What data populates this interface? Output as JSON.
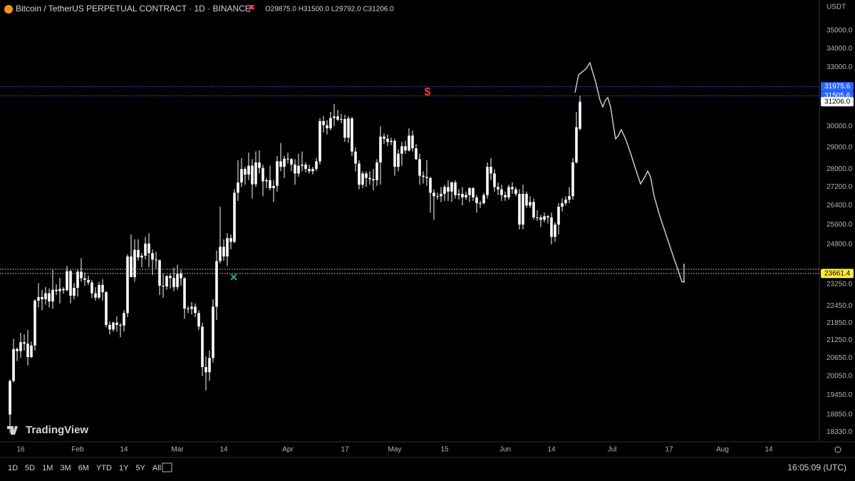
{
  "header": {
    "symbol": "Bitcoin / TetherUS PERPETUAL CONTRACT · 1D · BINANCE",
    "ohlc": "O29875.0 H31500.0 L29792.0 C31206.0"
  },
  "chart_data": {
    "type": "candlestick",
    "color": "#ffffff",
    "log_scale": true,
    "currency": "USDT",
    "xlim": [
      10.2,
      240.2
    ],
    "xticks": [
      {
        "value": 16,
        "label": "16"
      },
      {
        "value": 32,
        "label": "Feb"
      },
      {
        "value": 45,
        "label": "14"
      },
      {
        "value": 60,
        "label": "Mar"
      },
      {
        "value": 73,
        "label": "14"
      },
      {
        "value": 91,
        "label": "Apr"
      },
      {
        "value": 107,
        "label": "17"
      },
      {
        "value": 121,
        "label": "May"
      },
      {
        "value": 135,
        "label": "15"
      },
      {
        "value": 152,
        "label": "Jun"
      },
      {
        "value": 165,
        "label": "14"
      },
      {
        "value": 182,
        "label": "Jul"
      },
      {
        "value": 198,
        "label": "17"
      },
      {
        "value": 213,
        "label": "Aug"
      },
      {
        "value": 226,
        "label": "14"
      }
    ],
    "ylim": [
      18040,
      35850
    ],
    "yticks": [
      {
        "value": 35000,
        "label": "35000.0"
      },
      {
        "value": 34000,
        "label": "34000.0"
      },
      {
        "value": 33000,
        "label": "33000.0"
      },
      {
        "value": 30000,
        "label": "30000.0"
      },
      {
        "value": 29000,
        "label": "29000.0"
      },
      {
        "value": 28000,
        "label": "28000.0"
      },
      {
        "value": 27200,
        "label": "27200.0"
      },
      {
        "value": 26400,
        "label": "26400.0"
      },
      {
        "value": 25600,
        "label": "25600.0"
      },
      {
        "value": 24800,
        "label": "24800.0"
      },
      {
        "value": 23250,
        "label": "23250.0"
      },
      {
        "value": 22450,
        "label": "22450.0"
      },
      {
        "value": 21850,
        "label": "21850.0"
      },
      {
        "value": 21250,
        "label": "21250.0"
      },
      {
        "value": 20650,
        "label": "20650.0"
      },
      {
        "value": 20050,
        "label": "20050.0"
      },
      {
        "value": 19450,
        "label": "19450.0"
      },
      {
        "value": 18850,
        "label": "18850.0"
      },
      {
        "value": 18330,
        "label": "18330.0"
      }
    ],
    "price_tags": [
      {
        "value": 31975.6,
        "label": "31975.6",
        "color": "#2962ff"
      },
      {
        "value": 31505.6,
        "label": "31505.6",
        "color": "#2962ff"
      },
      {
        "value": 31206.0,
        "label": "31206.0",
        "color": "#ffffff"
      },
      {
        "value": 23822,
        "color": "#ffeb3b"
      },
      {
        "value": 23661.4,
        "label": "23661.4",
        "color": "#ffeb3b"
      }
    ],
    "markers": [
      {
        "text": "$",
        "color": "#f23645"
      },
      {
        "text": "×",
        "color": "#22ab94"
      }
    ],
    "x": [
      13,
      14,
      15,
      16,
      17,
      18,
      19,
      20,
      21,
      22,
      23,
      24,
      25,
      26,
      27,
      28,
      29,
      30,
      31,
      32,
      33,
      34,
      35,
      36,
      37,
      38,
      39,
      40,
      41,
      42,
      43,
      44,
      45,
      46,
      47,
      48,
      49,
      50,
      51,
      52,
      53,
      54,
      55,
      56,
      57,
      58,
      59,
      60,
      61,
      62,
      63,
      64,
      65,
      66,
      67,
      68,
      69,
      70,
      71,
      72,
      73,
      74,
      75,
      76,
      77,
      78,
      79,
      80,
      81,
      82,
      83,
      84,
      85,
      86,
      87,
      88,
      89,
      90,
      91,
      92,
      93,
      94,
      95,
      96,
      97,
      98,
      99,
      100,
      101,
      102,
      103,
      104,
      105,
      106,
      107,
      108,
      109,
      110,
      111,
      112,
      113,
      114,
      115,
      116,
      117,
      118,
      119,
      120,
      121,
      122,
      123,
      124,
      125,
      126,
      127,
      128,
      129,
      130,
      131,
      132,
      133,
      134,
      135,
      136,
      137,
      138,
      139,
      140,
      141,
      142,
      143,
      144,
      145,
      146,
      147,
      148,
      149,
      150,
      151,
      152,
      153,
      154,
      155,
      156,
      157,
      158,
      159,
      160,
      161,
      162,
      163,
      164,
      165,
      166,
      167,
      168,
      169,
      170,
      171,
      172,
      173
    ],
    "ohlc": [
      [
        18850,
        19950,
        18300,
        19900
      ],
      [
        19900,
        21300,
        19850,
        20950
      ],
      [
        20950,
        21000,
        20550,
        20880
      ],
      [
        20880,
        21500,
        20650,
        21180
      ],
      [
        21180,
        21450,
        20900,
        21130
      ],
      [
        21130,
        21600,
        20400,
        20680
      ],
      [
        20680,
        21200,
        20650,
        21070
      ],
      [
        21070,
        22700,
        20900,
        22650
      ],
      [
        22650,
        23300,
        22400,
        22780
      ],
      [
        22780,
        23050,
        22300,
        22700
      ],
      [
        22700,
        23150,
        22500,
        22920
      ],
      [
        22920,
        23100,
        22400,
        22620
      ],
      [
        22620,
        23800,
        22350,
        23050
      ],
      [
        23050,
        23250,
        22850,
        23000
      ],
      [
        23000,
        23500,
        22550,
        23080
      ],
      [
        23080,
        23150,
        22900,
        23030
      ],
      [
        23030,
        23950,
        23000,
        23750
      ],
      [
        23750,
        23800,
        22550,
        22830
      ],
      [
        22830,
        23300,
        22700,
        23120
      ],
      [
        23120,
        23800,
        22800,
        23730
      ],
      [
        23730,
        24250,
        23350,
        23480
      ],
      [
        23480,
        23700,
        23200,
        23420
      ],
      [
        23420,
        23580,
        23230,
        23320
      ],
      [
        23320,
        23420,
        22750,
        22920
      ],
      [
        22920,
        23150,
        22650,
        22760
      ],
      [
        22760,
        23350,
        22700,
        23230
      ],
      [
        23230,
        23450,
        22650,
        22960
      ],
      [
        22960,
        23000,
        21700,
        21780
      ],
      [
        21780,
        21900,
        21450,
        21620
      ],
      [
        21620,
        21900,
        21550,
        21860
      ],
      [
        21860,
        22080,
        21550,
        21780
      ],
      [
        21780,
        21850,
        21350,
        21760
      ],
      [
        21760,
        22300,
        21550,
        22200
      ],
      [
        22200,
        24400,
        22050,
        24320
      ],
      [
        24320,
        25200,
        23600,
        23520
      ],
      [
        23520,
        25000,
        23350,
        24580
      ],
      [
        24580,
        25000,
        24150,
        24280
      ],
      [
        24280,
        24450,
        23900,
        24350
      ],
      [
        24350,
        25100,
        24200,
        24830
      ],
      [
        24830,
        25250,
        23900,
        24450
      ],
      [
        24450,
        24600,
        23600,
        24200
      ],
      [
        24200,
        24500,
        23850,
        24170
      ],
      [
        24170,
        24200,
        22850,
        23200
      ],
      [
        23200,
        23650,
        22750,
        23170
      ],
      [
        23170,
        23600,
        23050,
        23560
      ],
      [
        23560,
        23650,
        23100,
        23490
      ],
      [
        23490,
        23880,
        23000,
        23150
      ],
      [
        23150,
        24000,
        23050,
        23650
      ],
      [
        23650,
        23800,
        23200,
        23480
      ],
      [
        23480,
        23520,
        22000,
        22360
      ],
      [
        22360,
        22450,
        22200,
        22350
      ],
      [
        22350,
        22600,
        22150,
        22430
      ],
      [
        22430,
        22550,
        22050,
        22200
      ],
      [
        22200,
        22300,
        21600,
        21720
      ],
      [
        21720,
        21850,
        20050,
        20350
      ],
      [
        20350,
        20700,
        19600,
        20180
      ],
      [
        20180,
        20900,
        19900,
        20650
      ],
      [
        20650,
        22700,
        20500,
        22430
      ],
      [
        22430,
        24550,
        21950,
        24140
      ],
      [
        24140,
        26350,
        24050,
        24700
      ],
      [
        24700,
        25000,
        24150,
        24320
      ],
      [
        24320,
        25250,
        23950,
        25050
      ],
      [
        25050,
        25200,
        24600,
        24900
      ],
      [
        24900,
        27100,
        24850,
        26950
      ],
      [
        26950,
        28400,
        26600,
        27400
      ],
      [
        27400,
        28500,
        27200,
        28000
      ],
      [
        28000,
        28100,
        27300,
        27750
      ],
      [
        27750,
        28750,
        27500,
        28150
      ],
      [
        28150,
        28450,
        26700,
        27320
      ],
      [
        27320,
        28800,
        27200,
        28300
      ],
      [
        28300,
        28850,
        27800,
        28050
      ],
      [
        28050,
        28200,
        26800,
        27450
      ],
      [
        27450,
        27600,
        27150,
        27500
      ],
      [
        27500,
        28150,
        27050,
        27150
      ],
      [
        27150,
        27500,
        26550,
        27250
      ],
      [
        27250,
        28600,
        27000,
        28350
      ],
      [
        28350,
        29200,
        27900,
        28100
      ],
      [
        28100,
        28600,
        27600,
        28470
      ],
      [
        28470,
        28750,
        28250,
        28450
      ],
      [
        28450,
        28500,
        27900,
        28200
      ],
      [
        28200,
        28450,
        27300,
        27800
      ],
      [
        27800,
        28700,
        27650,
        28150
      ],
      [
        28150,
        28800,
        27900,
        28200
      ],
      [
        28200,
        28300,
        27850,
        28000
      ],
      [
        28000,
        28200,
        27800,
        27900
      ],
      [
        27900,
        28100,
        27750,
        28000
      ],
      [
        28000,
        28500,
        27900,
        28350
      ],
      [
        28350,
        30400,
        28200,
        30250
      ],
      [
        30250,
        30500,
        29700,
        30050
      ],
      [
        30050,
        30300,
        29600,
        29900
      ],
      [
        29900,
        30700,
        29800,
        30400
      ],
      [
        30400,
        31100,
        30000,
        30480
      ],
      [
        30480,
        30800,
        30250,
        30320
      ],
      [
        30320,
        30600,
        30150,
        30350
      ],
      [
        30350,
        30550,
        29250,
        29450
      ],
      [
        29450,
        30500,
        29200,
        30380
      ],
      [
        30380,
        30450,
        28600,
        28800
      ],
      [
        28800,
        29000,
        27900,
        28250
      ],
      [
        28250,
        28400,
        27100,
        27300
      ],
      [
        27300,
        27900,
        27150,
        27800
      ],
      [
        27800,
        27900,
        27200,
        27600
      ],
      [
        27600,
        27900,
        27300,
        27550
      ],
      [
        27550,
        28000,
        27050,
        27500
      ],
      [
        27500,
        28450,
        27250,
        28300
      ],
      [
        28300,
        30000,
        27300,
        29500
      ],
      [
        29500,
        29650,
        29150,
        29400
      ],
      [
        29400,
        29600,
        29050,
        29250
      ],
      [
        29250,
        29450,
        29100,
        29300
      ],
      [
        29300,
        29400,
        27700,
        28100
      ],
      [
        28100,
        28900,
        27900,
        28700
      ],
      [
        28700,
        29250,
        28150,
        29050
      ],
      [
        29050,
        29300,
        28700,
        28850
      ],
      [
        28850,
        29900,
        28800,
        29550
      ],
      [
        29550,
        29800,
        28800,
        28950
      ],
      [
        28950,
        29150,
        28400,
        28450
      ],
      [
        28450,
        28700,
        27300,
        27700
      ],
      [
        27700,
        27900,
        27350,
        27650
      ],
      [
        27650,
        28400,
        27250,
        27600
      ],
      [
        27600,
        27650,
        26100,
        26950
      ],
      [
        26950,
        27100,
        25800,
        26800
      ],
      [
        26800,
        26950,
        26650,
        26800
      ],
      [
        26800,
        27200,
        26550,
        26900
      ],
      [
        26900,
        27300,
        26600,
        27200
      ],
      [
        27200,
        27500,
        26600,
        27000
      ],
      [
        27000,
        27450,
        26550,
        27400
      ],
      [
        27400,
        27500,
        26700,
        26850
      ],
      [
        26850,
        27100,
        26650,
        26900
      ],
      [
        26900,
        27200,
        26400,
        26750
      ],
      [
        26750,
        27000,
        26650,
        26850
      ],
      [
        26850,
        27200,
        26550,
        27150
      ],
      [
        27150,
        27200,
        26600,
        26750
      ],
      [
        26750,
        26850,
        26100,
        26500
      ],
      [
        26500,
        26600,
        26300,
        26500
      ],
      [
        26500,
        26950,
        26450,
        26850
      ],
      [
        26850,
        28300,
        26700,
        28100
      ],
      [
        28100,
        28500,
        27500,
        27800
      ],
      [
        27800,
        28000,
        27000,
        27200
      ],
      [
        27200,
        27400,
        26850,
        27100
      ],
      [
        27100,
        27300,
        26600,
        26850
      ],
      [
        26850,
        27000,
        26600,
        26750
      ],
      [
        26750,
        27300,
        26650,
        27200
      ],
      [
        27200,
        27400,
        26900,
        27100
      ],
      [
        27100,
        27200,
        26800,
        26900
      ],
      [
        26900,
        27100,
        25400,
        25600
      ],
      [
        25600,
        27300,
        25400,
        26900
      ],
      [
        26900,
        27000,
        26300,
        26400
      ],
      [
        26400,
        26800,
        26300,
        26550
      ],
      [
        26550,
        26700,
        25800,
        25900
      ],
      [
        25900,
        26200,
        25750,
        25900
      ],
      [
        25900,
        26000,
        25500,
        25800
      ],
      [
        25800,
        26100,
        25700,
        25950
      ],
      [
        25950,
        26000,
        25650,
        25900
      ],
      [
        25900,
        26100,
        24800,
        25100
      ],
      [
        25100,
        25700,
        24900,
        25600
      ],
      [
        25600,
        26500,
        25200,
        26350
      ],
      [
        26350,
        26700,
        26150,
        26500
      ],
      [
        26500,
        26800,
        26400,
        26650
      ],
      [
        26650,
        27200,
        26500,
        26800
      ],
      [
        26800,
        28500,
        26650,
        28300
      ],
      [
        28300,
        30700,
        28250,
        29950
      ],
      [
        29875,
        31500,
        29792,
        31206
      ]
    ]
  },
  "branding": "TradingView",
  "toolbar": {
    "ranges": [
      "1D",
      "5D",
      "1M",
      "3M",
      "6M",
      "YTD",
      "1Y",
      "5Y",
      "All"
    ],
    "clock": "16:05:09 (UTC)"
  }
}
